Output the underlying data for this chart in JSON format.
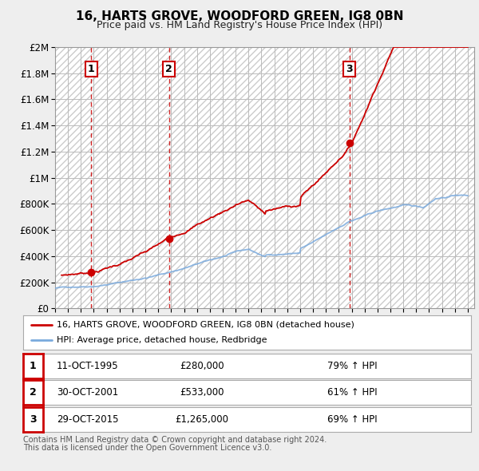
{
  "title": "16, HARTS GROVE, WOODFORD GREEN, IG8 0BN",
  "subtitle": "Price paid vs. HM Land Registry's House Price Index (HPI)",
  "title_fontsize": 11,
  "subtitle_fontsize": 9,
  "ylim": [
    0,
    2000000
  ],
  "yticks": [
    0,
    200000,
    400000,
    600000,
    800000,
    1000000,
    1200000,
    1400000,
    1600000,
    1800000,
    2000000
  ],
  "ytick_labels": [
    "£0",
    "£200K",
    "£400K",
    "£600K",
    "£800K",
    "£1M",
    "£1.2M",
    "£1.4M",
    "£1.6M",
    "£1.8M",
    "£2M"
  ],
  "red_line_color": "#cc0000",
  "blue_line_color": "#7aaadd",
  "vline_color": "#cc0000",
  "grid_color": "#bbbbbb",
  "hatch_color": "#cccccc",
  "background_color": "#eeeeee",
  "plot_bg_color": "#ffffff",
  "sale_points": [
    {
      "year": 1995.79,
      "price": 280000,
      "label": "1"
    },
    {
      "year": 2001.83,
      "price": 533000,
      "label": "2"
    },
    {
      "year": 2015.83,
      "price": 1265000,
      "label": "3"
    }
  ],
  "legend_red_label": "16, HARTS GROVE, WOODFORD GREEN, IG8 0BN (detached house)",
  "legend_blue_label": "HPI: Average price, detached house, Redbridge",
  "table_rows": [
    {
      "num": "1",
      "date": "11-OCT-1995",
      "price": "£280,000",
      "hpi": "79% ↑ HPI"
    },
    {
      "num": "2",
      "date": "30-OCT-2001",
      "price": "£533,000",
      "hpi": "61% ↑ HPI"
    },
    {
      "num": "3",
      "date": "29-OCT-2015",
      "price": "£1,265,000",
      "hpi": "69% ↑ HPI"
    }
  ],
  "footer_line1": "Contains HM Land Registry data © Crown copyright and database right 2024.",
  "footer_line2": "This data is licensed under the Open Government Licence v3.0.",
  "xmin": 1993,
  "xmax": 2025.5
}
